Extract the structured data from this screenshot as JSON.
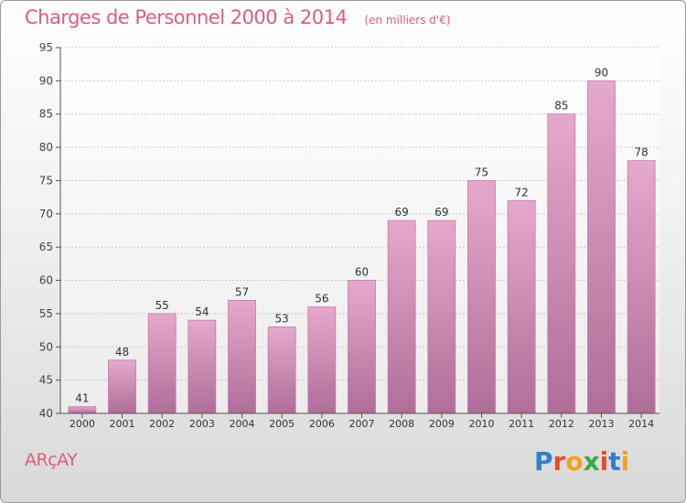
{
  "header": {
    "title": "Charges de Personnel 2000 à 2014",
    "subtitle": "(en milliers d'€)"
  },
  "footer": {
    "town": "ARçAY",
    "brand": "Proxiti",
    "brand_colors": [
      "#2f7fd0",
      "#e94b2a",
      "#f5a21a",
      "#3aa84a",
      "#e94b2a",
      "#2f7fd0",
      "#f5a21a"
    ]
  },
  "colors": {
    "accent": "#de5c7f",
    "bar_top": "#e6a8cc",
    "bar_bottom": "#b06d98",
    "bar_edge": "#c27aa6"
  },
  "chart_data": {
    "type": "bar",
    "categories": [
      "2000",
      "2001",
      "2002",
      "2003",
      "2004",
      "2005",
      "2006",
      "2007",
      "2008",
      "2009",
      "2010",
      "2011",
      "2012",
      "2013",
      "2014"
    ],
    "values": [
      41,
      48,
      55,
      54,
      57,
      53,
      56,
      60,
      69,
      69,
      75,
      72,
      85,
      90,
      78
    ],
    "ylim": [
      40,
      95
    ],
    "yticks": [
      40,
      45,
      50,
      55,
      60,
      65,
      70,
      75,
      80,
      85,
      90,
      95
    ],
    "grid": true,
    "data_labels": true,
    "xlabel": "",
    "ylabel": ""
  }
}
